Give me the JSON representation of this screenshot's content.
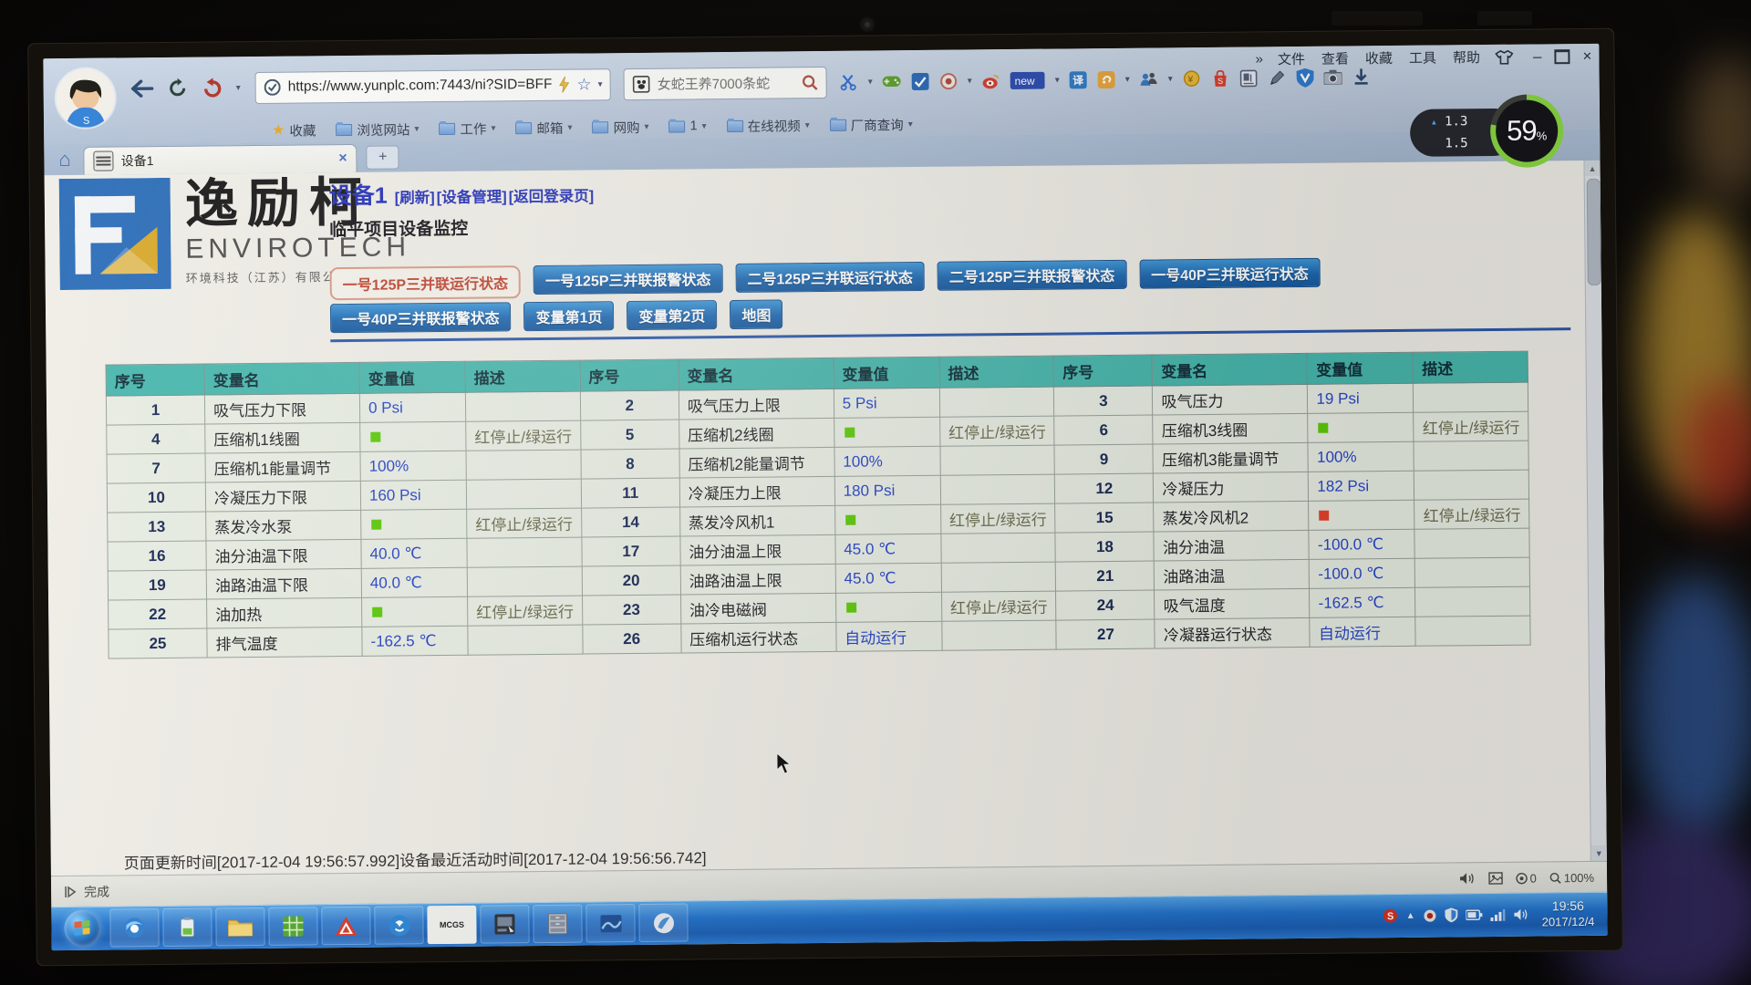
{
  "window": {
    "menu_overflow": "»",
    "menu": [
      "文件",
      "查看",
      "收藏",
      "工具",
      "帮助"
    ],
    "controls": {
      "minimize": "–",
      "close": "×"
    }
  },
  "browser": {
    "url": "https://www.yunplc.com:7443/ni?SID=BFF",
    "search_text": "女蛇王养7000条蛇",
    "new_badge": "new",
    "translate_glyph": "译",
    "home_glyph": "⌂",
    "bookmarks": [
      {
        "label": "收藏",
        "icon": "star",
        "caret": false
      },
      {
        "label": "浏览网站",
        "icon": "folder",
        "caret": true
      },
      {
        "label": "工作",
        "icon": "folder",
        "caret": true
      },
      {
        "label": "邮箱",
        "icon": "folder",
        "caret": true
      },
      {
        "label": "网购",
        "icon": "folder",
        "caret": true
      },
      {
        "label": "1",
        "icon": "folder",
        "caret": true
      },
      {
        "label": "在线视频",
        "icon": "folder",
        "caret": true
      },
      {
        "label": "厂商查询",
        "icon": "folder",
        "caret": true
      }
    ],
    "tab": {
      "title": "设备1",
      "close": "×",
      "new_tab": "+"
    },
    "statusbar": {
      "done": "完成",
      "count": "0",
      "zoom": "100%"
    }
  },
  "osd": {
    "up_value": "1.3",
    "down_value": "1.5",
    "percent": "59",
    "percent_sign": "%"
  },
  "page": {
    "logo": {
      "cn": "逸励柯",
      "en": "ENVIROTECH",
      "sub": "环境科技（江苏）有限公司"
    },
    "title": "设备1",
    "links": [
      "[刷新]",
      "[设备管理]",
      "[返回登录页]"
    ],
    "subtitle": "临平项目设备监控",
    "nav_row1": [
      {
        "label": "一号125P三并联运行状态",
        "active": true
      },
      {
        "label": "一号125P三并联报警状态",
        "active": false
      },
      {
        "label": "二号125P三并联运行状态",
        "active": false
      },
      {
        "label": "二号125P三并联报警状态",
        "active": false
      },
      {
        "label": "一号40P三并联运行状态",
        "active": false
      }
    ],
    "nav_row2": [
      {
        "label": "一号40P三并联报警状态",
        "active": false
      },
      {
        "label": "变量第1页",
        "active": false
      },
      {
        "label": "变量第2页",
        "active": false
      },
      {
        "label": "地图",
        "active": false
      }
    ],
    "footer": "页面更新时间[2017-12-04 19:56:57.992]设备最近活动时间[2017-12-04 19:56:56.742]"
  },
  "table": {
    "headers": [
      "序号",
      "变量名",
      "变量值",
      "描述"
    ],
    "rows": [
      [
        {
          "n": "1",
          "name": "吸气压力下限",
          "v": "0 Psi",
          "vt": "t",
          "d": ""
        },
        {
          "n": "2",
          "name": "吸气压力上限",
          "v": "5 Psi",
          "vt": "t",
          "d": ""
        },
        {
          "n": "3",
          "name": "吸气压力",
          "v": "19 Psi",
          "vt": "t",
          "d": ""
        }
      ],
      [
        {
          "n": "4",
          "name": "压缩机1线圈",
          "v": "",
          "vt": "g",
          "d": "红停止/绿运行"
        },
        {
          "n": "5",
          "name": "压缩机2线圈",
          "v": "",
          "vt": "g",
          "d": "红停止/绿运行"
        },
        {
          "n": "6",
          "name": "压缩机3线圈",
          "v": "",
          "vt": "g",
          "d": "红停止/绿运行"
        }
      ],
      [
        {
          "n": "7",
          "name": "压缩机1能量调节",
          "v": "100%",
          "vt": "t",
          "d": ""
        },
        {
          "n": "8",
          "name": "压缩机2能量调节",
          "v": "100%",
          "vt": "t",
          "d": ""
        },
        {
          "n": "9",
          "name": "压缩机3能量调节",
          "v": "100%",
          "vt": "t",
          "d": ""
        }
      ],
      [
        {
          "n": "10",
          "name": "冷凝压力下限",
          "v": "160 Psi",
          "vt": "t",
          "d": ""
        },
        {
          "n": "11",
          "name": "冷凝压力上限",
          "v": "180 Psi",
          "vt": "t",
          "d": ""
        },
        {
          "n": "12",
          "name": "冷凝压力",
          "v": "182 Psi",
          "vt": "t",
          "d": ""
        }
      ],
      [
        {
          "n": "13",
          "name": "蒸发冷水泵",
          "v": "",
          "vt": "g",
          "d": "红停止/绿运行"
        },
        {
          "n": "14",
          "name": "蒸发冷风机1",
          "v": "",
          "vt": "g",
          "d": "红停止/绿运行"
        },
        {
          "n": "15",
          "name": "蒸发冷风机2",
          "v": "",
          "vt": "r",
          "d": "红停止/绿运行"
        }
      ],
      [
        {
          "n": "16",
          "name": "油分油温下限",
          "v": "40.0 ℃",
          "vt": "t",
          "d": ""
        },
        {
          "n": "17",
          "name": "油分油温上限",
          "v": "45.0 ℃",
          "vt": "t",
          "d": ""
        },
        {
          "n": "18",
          "name": "油分油温",
          "v": "-100.0 ℃",
          "vt": "t",
          "d": ""
        }
      ],
      [
        {
          "n": "19",
          "name": "油路油温下限",
          "v": "40.0 ℃",
          "vt": "t",
          "d": ""
        },
        {
          "n": "20",
          "name": "油路油温上限",
          "v": "45.0 ℃",
          "vt": "t",
          "d": ""
        },
        {
          "n": "21",
          "name": "油路油温",
          "v": "-100.0 ℃",
          "vt": "t",
          "d": ""
        }
      ],
      [
        {
          "n": "22",
          "name": "油加热",
          "v": "",
          "vt": "g",
          "d": "红停止/绿运行"
        },
        {
          "n": "23",
          "name": "油冷电磁阀",
          "v": "",
          "vt": "g",
          "d": "红停止/绿运行"
        },
        {
          "n": "24",
          "name": "吸气温度",
          "v": "-162.5 ℃",
          "vt": "t",
          "d": ""
        }
      ],
      [
        {
          "n": "25",
          "name": "排气温度",
          "v": "-162.5 ℃",
          "vt": "t",
          "d": ""
        },
        {
          "n": "26",
          "name": "压缩机运行状态",
          "v": "自动运行",
          "vt": "t",
          "d": ""
        },
        {
          "n": "27",
          "name": "冷凝器运行状态",
          "v": "自动运行",
          "vt": "t",
          "d": ""
        }
      ]
    ]
  },
  "taskbar": {
    "mcgs_label": "MCGS",
    "time": "19:56",
    "date": "2017/12/4"
  },
  "colors": {
    "header_teal": "#48b8ae",
    "value_blue": "#2946c8",
    "run_green": "#5ecb0a",
    "stop_red": "#e8432c",
    "button_blue": "#1e68b2",
    "selected_red": "#c04330"
  }
}
